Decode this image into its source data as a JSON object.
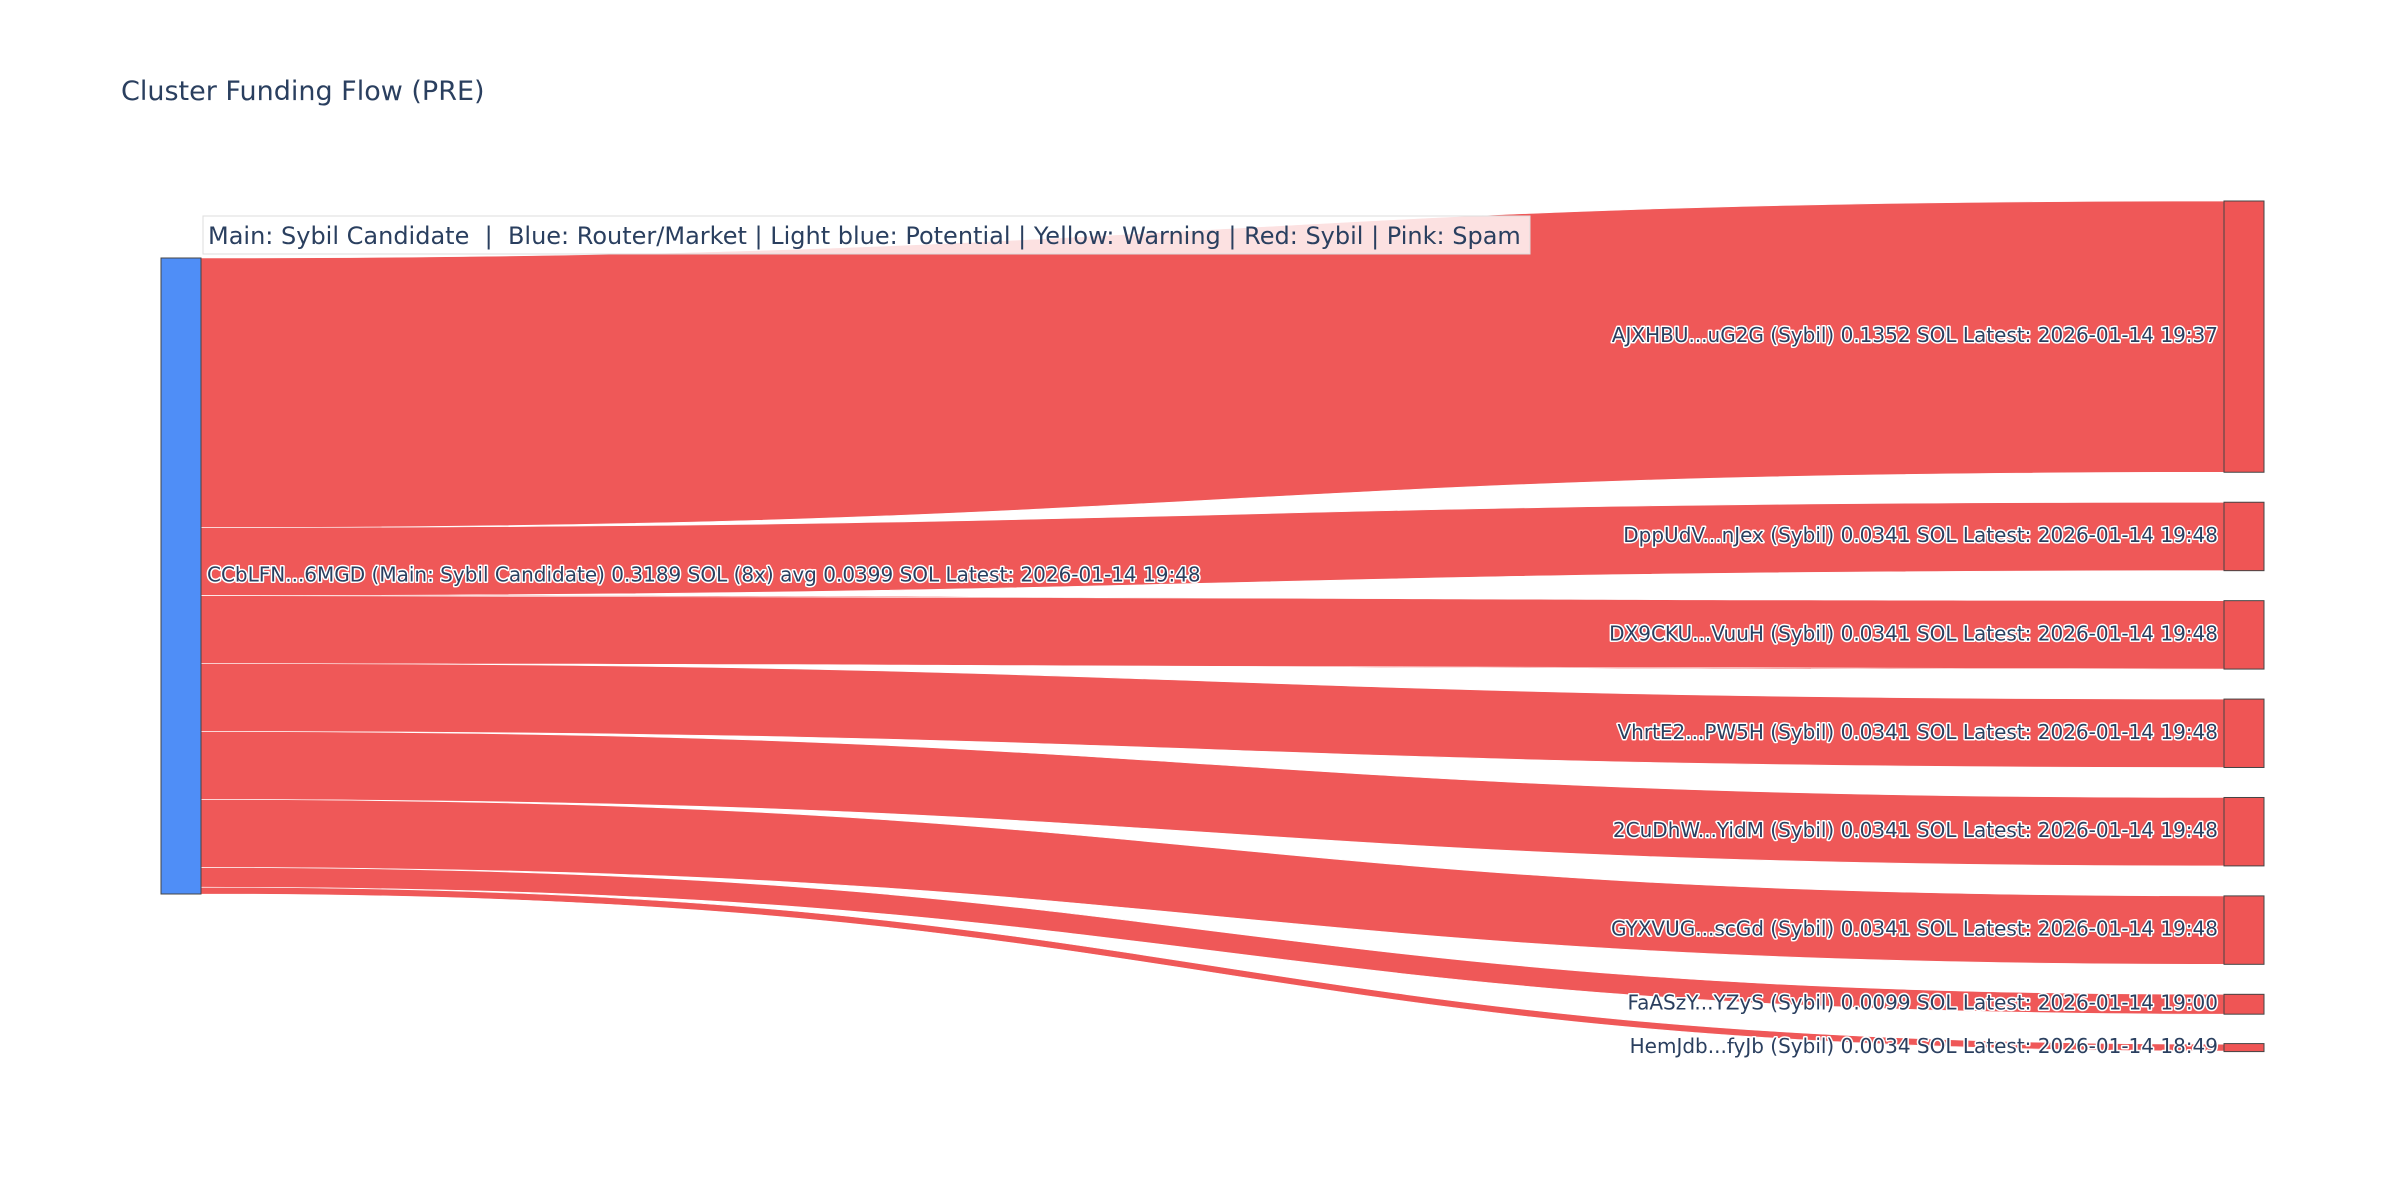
{
  "chart_data": {
    "type": "sankey",
    "title": "Cluster Funding Flow (PRE)",
    "legend_note": "Main: Sybil Candidate  |  Blue: Router/Market | Light blue: Potential | Yellow: Warning | Red: Sybil | Pink: Spam",
    "colors": {
      "source_node": "#4f8ef7",
      "target_node": "#ef5555",
      "link": "#ef5555",
      "node_border": "#444444"
    },
    "source": {
      "label": "CCbLFN...6MGD (Main: Sybil Candidate) 0.3189 SOL (8x) avg 0.0399 SOL Latest: 2026-01-14 19:48",
      "value": 0.3189
    },
    "targets": [
      {
        "label": "AJXHBU...uG2G (Sybil) 0.1352 SOL Latest: 2026-01-14 19:37",
        "value": 0.1352
      },
      {
        "label": "DppUdV...nJex (Sybil) 0.0341 SOL Latest: 2026-01-14 19:48",
        "value": 0.0341
      },
      {
        "label": "DX9CKU...VuuH (Sybil) 0.0341 SOL Latest: 2026-01-14 19:48",
        "value": 0.0341
      },
      {
        "label": "VhrtE2...PW5H (Sybil) 0.0341 SOL Latest: 2026-01-14 19:48",
        "value": 0.0341
      },
      {
        "label": "2CuDhW...YidM (Sybil) 0.0341 SOL Latest: 2026-01-14 19:48",
        "value": 0.0341
      },
      {
        "label": "GYXVUG...scGd (Sybil) 0.0341 SOL Latest: 2026-01-14 19:48",
        "value": 0.0341
      },
      {
        "label": "FaASzY...YZyS (Sybil) 0.0099 SOL Latest: 2026-01-14 19:00",
        "value": 0.0099
      },
      {
        "label": "HemJdb...fyJb (Sybil) 0.0034 SOL Latest: 2026-01-14 18:49",
        "value": 0.0034
      }
    ]
  }
}
